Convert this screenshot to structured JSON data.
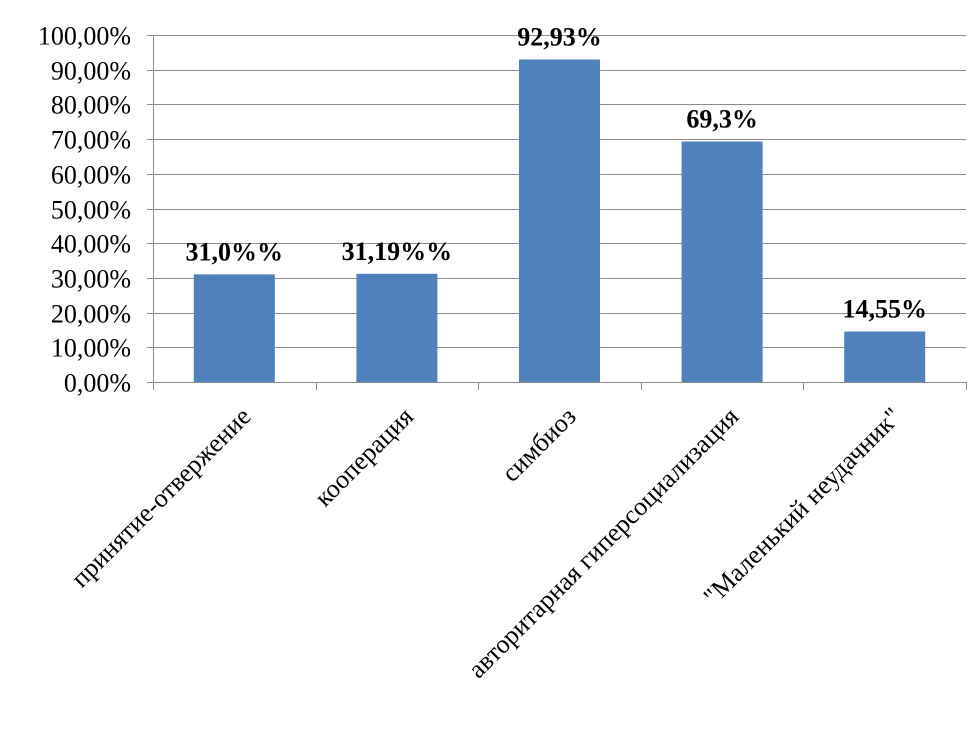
{
  "chart_data": {
    "type": "bar",
    "title": "",
    "xlabel": "",
    "ylabel": "",
    "categories": [
      "принятие-отвержение",
      "кооперация",
      "симбиоз",
      "авторитарная гиперсоциализация",
      "\"Маленький неудачник\""
    ],
    "values": [
      31.0,
      31.19,
      92.93,
      69.3,
      14.55
    ],
    "data_labels": [
      "31,0%%",
      "31,19%%",
      "92,93%",
      "69,3%",
      "14,55%"
    ],
    "ylim": [
      0,
      100
    ],
    "yticks": [
      0,
      10,
      20,
      30,
      40,
      50,
      60,
      70,
      80,
      90,
      100
    ],
    "ytick_labels": [
      "0,00%",
      "10,00%",
      "20,00%",
      "30,00%",
      "40,00%",
      "50,00%",
      "60,00%",
      "70,00%",
      "80,00%",
      "90,00%",
      "100,00%"
    ],
    "grid": true,
    "legend": "none",
    "bar_color": "#4f81bd",
    "grid_color": "#8c8c8c"
  }
}
